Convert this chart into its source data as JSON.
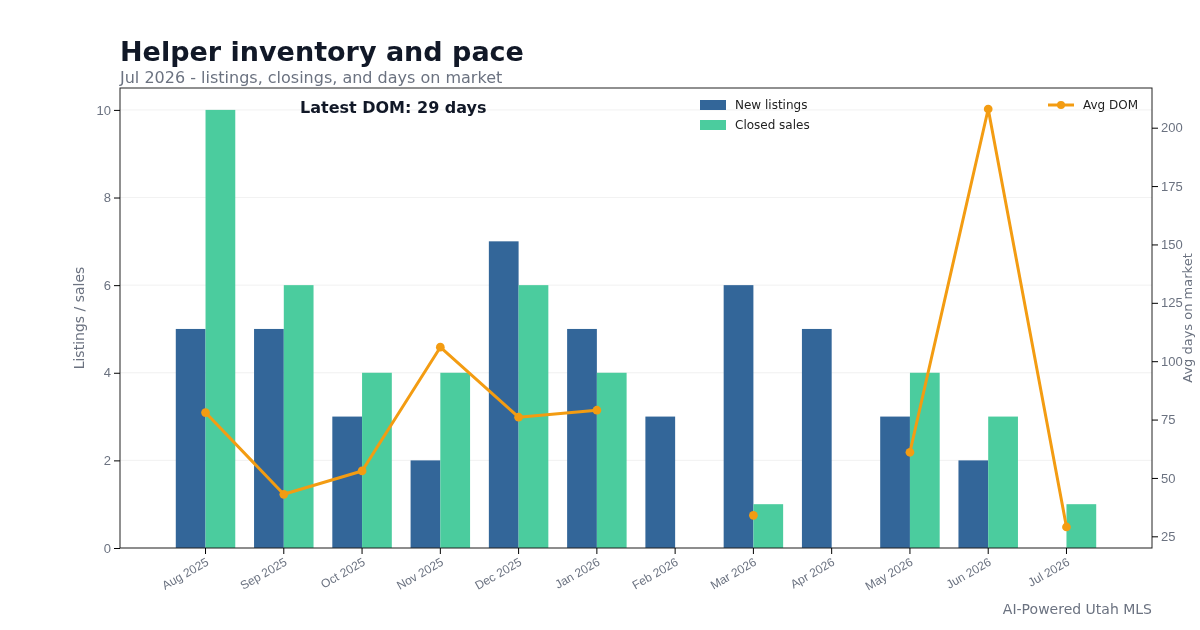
{
  "chart_data": {
    "type": "bar",
    "title": "Helper inventory and pace",
    "subtitle": "Jul 2026 - listings, closings, and days on market",
    "ylabel": "Listings / sales",
    "y2label": "Avg days on market",
    "categories": [
      "Aug 2025",
      "Sep 2025",
      "Oct 2025",
      "Nov 2025",
      "Dec 2025",
      "Jan 2026",
      "Feb 2026",
      "Mar 2026",
      "Apr 2026",
      "May 2026",
      "Jun 2026",
      "Jul 2026"
    ],
    "series": [
      {
        "name": "New listings",
        "color": "#336699",
        "values": [
          5,
          5,
          3,
          2,
          7,
          5,
          3,
          6,
          5,
          3,
          2,
          0
        ]
      },
      {
        "name": "Closed sales",
        "color": "#4bcc9e",
        "values": [
          10,
          6,
          4,
          4,
          6,
          4,
          0,
          1,
          0,
          4,
          3,
          1
        ]
      },
      {
        "name": "Avg DOM",
        "type": "line",
        "axis": "y2",
        "color": "#f39c12",
        "values": [
          78,
          43,
          53,
          106,
          76,
          79,
          null,
          34,
          null,
          61,
          208,
          29
        ]
      }
    ],
    "ylim": [
      0,
      10.5
    ],
    "yticks": [
      0,
      2,
      4,
      6,
      8,
      10
    ],
    "y2lim": [
      20,
      217
    ],
    "y2ticks": [
      25,
      50,
      75,
      100,
      125,
      150,
      175,
      200
    ],
    "grid": "y",
    "legend": "top",
    "marker": "circle",
    "line_style": "solid",
    "annotations": [
      "Latest DOM: 29 days",
      "AI-Powered Utah MLS"
    ]
  }
}
